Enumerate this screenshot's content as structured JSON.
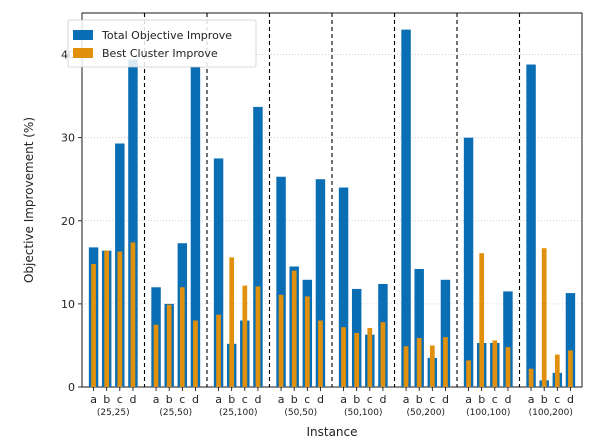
{
  "chart_data": {
    "type": "bar",
    "xlabel": "Instance",
    "ylabel": "Objective Improvement (%)",
    "ylim": [
      0,
      45
    ],
    "yticks": [
      0,
      10,
      20,
      30,
      40
    ],
    "grid": "horizontal dotted",
    "legend_position": "top-left",
    "colors": {
      "Total Objective Improve": "#0a6eb4",
      "Best Cluster Improve": "#e0900c"
    },
    "categories": [
      "a",
      "b",
      "c",
      "d"
    ],
    "groups": [
      {
        "label": "(25,25)",
        "total": [
          16.8,
          16.4,
          29.3,
          39.4
        ],
        "best": [
          14.8,
          16.4,
          16.3,
          17.4
        ]
      },
      {
        "label": "(25,50)",
        "total": [
          12.0,
          10.0,
          17.3,
          38.5
        ],
        "best": [
          7.5,
          9.9,
          12.0,
          8.0
        ]
      },
      {
        "label": "(25,100)",
        "total": [
          27.5,
          5.2,
          8.0,
          33.7
        ],
        "best": [
          8.7,
          15.6,
          12.2,
          12.1
        ]
      },
      {
        "label": "(50,50)",
        "total": [
          25.3,
          14.5,
          12.9,
          25.0
        ],
        "best": [
          11.1,
          14.0,
          10.9,
          8.0
        ]
      },
      {
        "label": "(50,100)",
        "total": [
          24.0,
          11.8,
          6.3,
          12.4
        ],
        "best": [
          7.2,
          6.5,
          7.1,
          7.8
        ]
      },
      {
        "label": "(50,200)",
        "total": [
          43.0,
          14.2,
          3.5,
          12.9
        ],
        "best": [
          4.9,
          5.9,
          5.0,
          6.0
        ]
      },
      {
        "label": "(100,100)",
        "total": [
          30.0,
          5.3,
          5.3,
          11.5
        ],
        "best": [
          3.2,
          16.1,
          5.6,
          4.8
        ]
      },
      {
        "label": "(100,200)",
        "total": [
          38.8,
          0.8,
          1.7,
          11.3
        ],
        "best": [
          2.2,
          16.7,
          3.9,
          4.4
        ]
      }
    ],
    "series": [
      {
        "name": "Total Objective Improve",
        "key": "total"
      },
      {
        "name": "Best Cluster Improve",
        "key": "best"
      }
    ]
  }
}
